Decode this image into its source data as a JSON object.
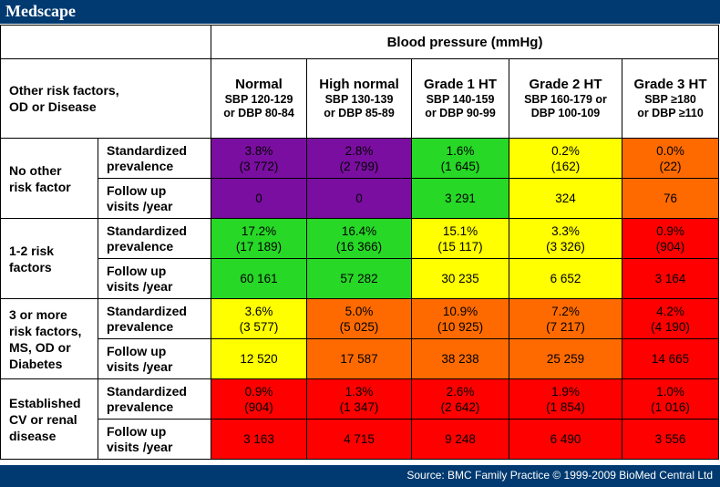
{
  "brand": {
    "logo_text": "Medscape"
  },
  "table": {
    "title": "Blood pressure (mmHg)",
    "left_header": [
      "Other risk factors,",
      "OD or Disease"
    ],
    "columns": [
      {
        "name": "Normal",
        "line1": "SBP 120-129",
        "line2": "or DBP 80-84"
      },
      {
        "name": "High normal",
        "line1": "SBP 130-139",
        "line2": "or DBP 85-89"
      },
      {
        "name": "Grade 1 HT",
        "line1": "SBP 140-159",
        "line2": "or DBP 90-99"
      },
      {
        "name": "Grade 2 HT",
        "line1": "SBP 160-179 or",
        "line2": "DBP 100-109"
      },
      {
        "name": "Grade 3 HT",
        "line1": "SBP ≥180",
        "line2": "or DBP ≥110"
      }
    ],
    "sub_labels": {
      "prevalence": [
        "Standardized",
        "prevalence"
      ],
      "visits": [
        "Follow up",
        "visits /year"
      ]
    },
    "groups": [
      {
        "label": [
          "No other",
          "risk factor"
        ],
        "prevalence": [
          {
            "pct": "3.8%",
            "n": "(3 772)",
            "color": "#7a0ea0"
          },
          {
            "pct": "2.8%",
            "n": "(2 799)",
            "color": "#7a0ea0"
          },
          {
            "pct": "1.6%",
            "n": "(1 645)",
            "color": "#27d827"
          },
          {
            "pct": "0.2%",
            "n": "(162)",
            "color": "#ffff00"
          },
          {
            "pct": "0.0%",
            "n": "(22)",
            "color": "#ff6a00"
          }
        ],
        "visits": [
          {
            "value": "0",
            "color": "#7a0ea0"
          },
          {
            "value": "0",
            "color": "#7a0ea0"
          },
          {
            "value": "3 291",
            "color": "#27d827"
          },
          {
            "value": "324",
            "color": "#ffff00"
          },
          {
            "value": "76",
            "color": "#ff6a00"
          }
        ]
      },
      {
        "label": [
          "1-2 risk",
          "factors"
        ],
        "prevalence": [
          {
            "pct": "17.2%",
            "n": "(17 189)",
            "color": "#27d827"
          },
          {
            "pct": "16.4%",
            "n": "(16 366)",
            "color": "#27d827"
          },
          {
            "pct": "15.1%",
            "n": "(15 117)",
            "color": "#ffff00"
          },
          {
            "pct": "3.3%",
            "n": "(3 326)",
            "color": "#ffff00"
          },
          {
            "pct": "0.9%",
            "n": "(904)",
            "color": "#ff0000"
          }
        ],
        "visits": [
          {
            "value": "60 161",
            "color": "#27d827"
          },
          {
            "value": "57 282",
            "color": "#27d827"
          },
          {
            "value": "30 235",
            "color": "#ffff00"
          },
          {
            "value": "6 652",
            "color": "#ffff00"
          },
          {
            "value": "3 164",
            "color": "#ff0000"
          }
        ]
      },
      {
        "label": [
          "3 or more",
          "risk factors,",
          "MS, OD or",
          "Diabetes"
        ],
        "prevalence": [
          {
            "pct": "3.6%",
            "n": "(3 577)",
            "color": "#ffff00"
          },
          {
            "pct": "5.0%",
            "n": "(5 025)",
            "color": "#ff6a00"
          },
          {
            "pct": "10.9%",
            "n": "(10 925)",
            "color": "#ff6a00"
          },
          {
            "pct": "7.2%",
            "n": "(7 217)",
            "color": "#ff6a00"
          },
          {
            "pct": "4.2%",
            "n": "(4 190)",
            "color": "#ff0000"
          }
        ],
        "visits": [
          {
            "value": "12 520",
            "color": "#ffff00"
          },
          {
            "value": "17 587",
            "color": "#ff6a00"
          },
          {
            "value": "38 238",
            "color": "#ff6a00"
          },
          {
            "value": "25 259",
            "color": "#ff6a00"
          },
          {
            "value": "14 665",
            "color": "#ff0000"
          }
        ]
      },
      {
        "label": [
          "Established",
          "CV or renal",
          "disease"
        ],
        "prevalence": [
          {
            "pct": "0.9%",
            "n": "(904)",
            "color": "#ff0000"
          },
          {
            "pct": "1.3%",
            "n": "(1 347)",
            "color": "#ff0000"
          },
          {
            "pct": "2.6%",
            "n": "(2 642)",
            "color": "#ff0000"
          },
          {
            "pct": "1.9%",
            "n": "(1 854)",
            "color": "#ff0000"
          },
          {
            "pct": "1.0%",
            "n": "(1 016)",
            "color": "#ff0000"
          }
        ],
        "visits": [
          {
            "value": "3 163",
            "color": "#ff0000"
          },
          {
            "value": "4 715",
            "color": "#ff0000"
          },
          {
            "value": "9 248",
            "color": "#ff0000"
          },
          {
            "value": "6 490",
            "color": "#ff0000"
          },
          {
            "value": "3 556",
            "color": "#ff0000"
          }
        ]
      }
    ]
  },
  "footer": {
    "source": "Source: BMC Family Practice © 1999-2009 BioMed Central Ltd"
  }
}
